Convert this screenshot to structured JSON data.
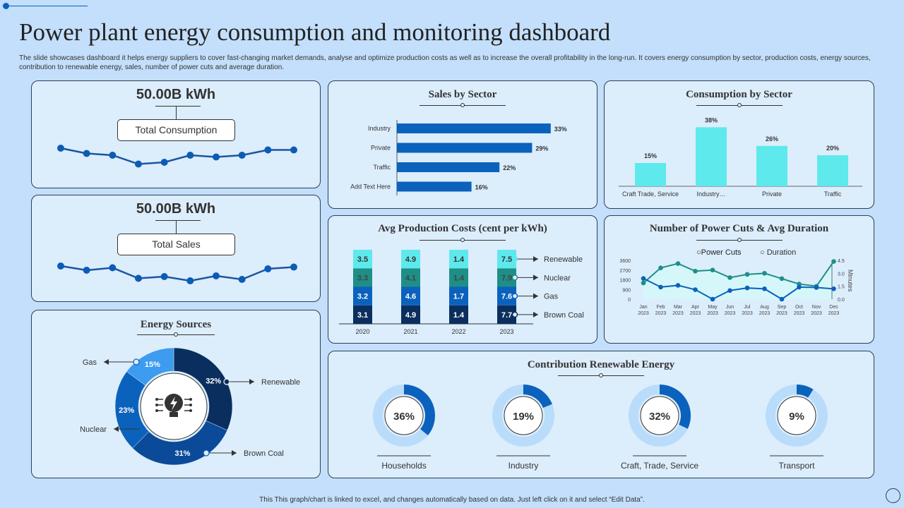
{
  "title": "Power plant energy consumption and monitoring dashboard",
  "description": "The slide showcases dashboard it helps energy suppliers to cover fast-changing market demands, analyse and optimize production costs as well as to increase the overall profitability in the long-run. It covers energy consumption by sector, production costs, energy sources, contribution to renewable energy, sales, number of power cuts and average duration.",
  "footer": "This This graph/chart is linked to excel, and changes automatically based on data. Just left click on it and select “Edit Data”.",
  "kpis": [
    {
      "value": "50.00B kWh",
      "label": "Total Consumption",
      "trend": [
        8,
        6.5,
        6,
        3.5,
        4,
        6,
        5.5,
        6,
        7.5,
        7.5
      ]
    },
    {
      "value": "50.00B kWh",
      "label": "Total Sales",
      "trend": [
        7,
        5.8,
        6.5,
        3.5,
        4,
        2.8,
        4.2,
        3.2,
        6.2,
        6.7
      ]
    }
  ],
  "colors": {
    "dark_navy": "#0a2f5e",
    "navy": "#0b4a99",
    "blue": "#0b62bd",
    "light_blue": "#3d9bf0",
    "teal": "#1e8f86",
    "cyan": "#5ee9ec",
    "ring": "#b9dcfb"
  },
  "chart_data": [
    {
      "id": "sales",
      "type": "bar",
      "orientation": "horizontal",
      "title": "Sales by Sector",
      "categories": [
        "Industry",
        "Private",
        "Traffic",
        "Add Text Here"
      ],
      "values": [
        33,
        29,
        22,
        16
      ],
      "unit": "%"
    },
    {
      "id": "consumption",
      "type": "bar",
      "title": "Consumption  by Sector",
      "categories": [
        "Craft Trade, Service",
        "Industry…",
        "Private",
        "Traffic"
      ],
      "values": [
        15,
        38,
        26,
        20
      ],
      "unit": "%"
    },
    {
      "id": "costs",
      "type": "bar",
      "stacked": true,
      "title": "Avg Production  Costs (cent per kWh)",
      "categories": [
        "2020",
        "2021",
        "2022",
        "2023"
      ],
      "series": [
        {
          "name": "Brown Coal",
          "values": [
            3.1,
            4.9,
            1.4,
            7.7
          ]
        },
        {
          "name": "Gas",
          "values": [
            3.2,
            4.6,
            1.7,
            7.6
          ]
        },
        {
          "name": "Nuclear",
          "values": [
            3.3,
            4.1,
            1.4,
            7.9
          ]
        },
        {
          "name": "Renewable",
          "values": [
            3.5,
            4.9,
            1.4,
            7.5
          ]
        }
      ]
    },
    {
      "id": "powercuts",
      "type": "line",
      "title": "Number  of Power Cuts & Avg Duration",
      "categories": [
        "Jan 2023",
        "Feb 2023",
        "Mar 2023",
        "Apr 2023",
        "May 2023",
        "Jun 2023",
        "Jul 2023",
        "Aug 2023",
        "Sep 2023",
        "Oct 2023",
        "Nov 2023",
        "Dec 2023"
      ],
      "yticks": [
        "0",
        "900",
        "1800",
        "2700",
        "3600"
      ],
      "ylim": [
        0,
        3600
      ],
      "y2ticks": [
        "0.0",
        "1.5",
        "3.0",
        "4.5"
      ],
      "y2lim": [
        0,
        4.5
      ],
      "y2label": "Minutes",
      "series": [
        {
          "name": "Power Cuts",
          "axis": "left",
          "values": [
            1500,
            2900,
            3300,
            2600,
            2700,
            2000,
            2300,
            2400,
            1900,
            1400,
            1200,
            3500
          ]
        },
        {
          "name": "Duration",
          "axis": "right",
          "values": [
            2.4,
            1.4,
            1.6,
            1.1,
            0,
            1.0,
            1.3,
            1.2,
            0,
            1.4,
            1.35,
            1.2
          ]
        }
      ]
    },
    {
      "id": "sources",
      "type": "pie",
      "donut": true,
      "title": "Energy Sources",
      "categories": [
        "Renewable",
        "Brown Coal",
        "Nuclear",
        "Gas"
      ],
      "values": [
        32,
        31,
        23,
        15
      ],
      "labels": [
        "32%",
        "31%",
        "23%",
        "15%"
      ]
    },
    {
      "id": "renewable",
      "type": "pie",
      "donut": true,
      "title": "Contribution  Renewable Energy",
      "categories": [
        "Households",
        "Industry",
        "Craft, Trade, Service",
        "Transport"
      ],
      "values": [
        36,
        19,
        32,
        9
      ],
      "labels": [
        "36%",
        "19%",
        "32%",
        "9%"
      ]
    }
  ]
}
